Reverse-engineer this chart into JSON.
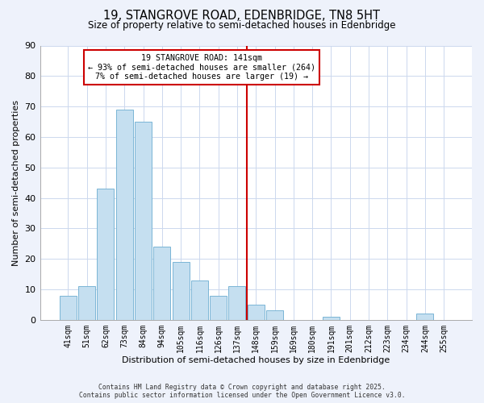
{
  "title": "19, STANGROVE ROAD, EDENBRIDGE, TN8 5HT",
  "subtitle": "Size of property relative to semi-detached houses in Edenbridge",
  "xlabel": "Distribution of semi-detached houses by size in Edenbridge",
  "ylabel": "Number of semi-detached properties",
  "bar_labels": [
    "41sqm",
    "51sqm",
    "62sqm",
    "73sqm",
    "84sqm",
    "94sqm",
    "105sqm",
    "116sqm",
    "126sqm",
    "137sqm",
    "148sqm",
    "159sqm",
    "169sqm",
    "180sqm",
    "191sqm",
    "201sqm",
    "212sqm",
    "223sqm",
    "234sqm",
    "244sqm",
    "255sqm"
  ],
  "bar_values": [
    8,
    11,
    43,
    69,
    65,
    24,
    19,
    13,
    8,
    11,
    5,
    3,
    0,
    0,
    1,
    0,
    0,
    0,
    0,
    2,
    0
  ],
  "bar_color": "#c5dff0",
  "bar_edge_color": "#7ab5d5",
  "vline_x": 9.5,
  "vline_color": "#cc0000",
  "ylim": [
    0,
    90
  ],
  "yticks": [
    0,
    10,
    20,
    30,
    40,
    50,
    60,
    70,
    80,
    90
  ],
  "annotation_title": "19 STANGROVE ROAD: 141sqm",
  "annotation_line1": "← 93% of semi-detached houses are smaller (264)",
  "annotation_line2": "7% of semi-detached houses are larger (19) →",
  "footnote1": "Contains HM Land Registry data © Crown copyright and database right 2025.",
  "footnote2": "Contains public sector information licensed under the Open Government Licence v3.0.",
  "bg_color": "#eef2fb",
  "plot_bg_color": "#ffffff",
  "grid_color": "#ccd8ee"
}
